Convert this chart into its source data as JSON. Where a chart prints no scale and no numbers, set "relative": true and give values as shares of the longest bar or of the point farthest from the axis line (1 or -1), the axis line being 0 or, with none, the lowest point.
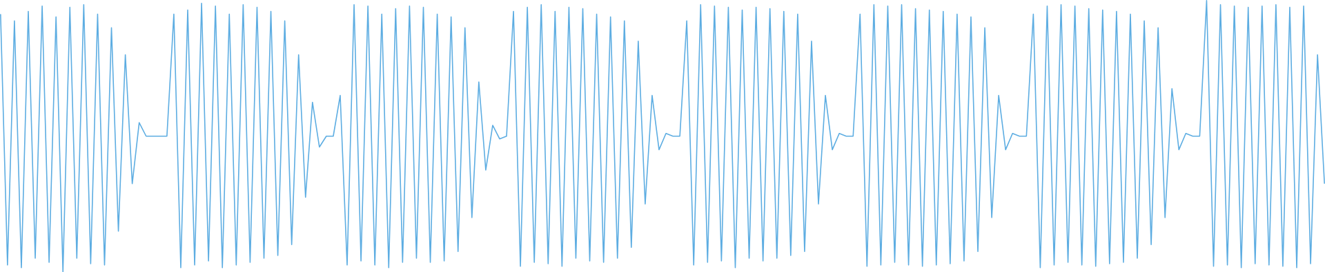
{
  "chart_data": {
    "type": "line",
    "relative": true,
    "color": "#5dade2",
    "categories": [
      null,
      null,
      null,
      null,
      null,
      null,
      null,
      null,
      null,
      null,
      null,
      null,
      null,
      null,
      null,
      null,
      null,
      null,
      null,
      null,
      null,
      null,
      null,
      null,
      null,
      null,
      null,
      null,
      null,
      null,
      null,
      null,
      null,
      null,
      null,
      null,
      null,
      null,
      null,
      null,
      null,
      null,
      null,
      null,
      null,
      null,
      null,
      null,
      null,
      null,
      null,
      null,
      null,
      null,
      null,
      null,
      null,
      null,
      null,
      null,
      null,
      null,
      null,
      null,
      null,
      null,
      null,
      null,
      null,
      null,
      null,
      null,
      null,
      null,
      null,
      null,
      null,
      null,
      null,
      null,
      null,
      null,
      null,
      null,
      null,
      null,
      null,
      null,
      null,
      null,
      null,
      null,
      null,
      null,
      null,
      null,
      null,
      null,
      null,
      null,
      null,
      null,
      null,
      null,
      null,
      null,
      null,
      null,
      null,
      null,
      null,
      null,
      null,
      null,
      null,
      null,
      null,
      null,
      null,
      null,
      null,
      null,
      null,
      null,
      null,
      null,
      null,
      null,
      null,
      null,
      null,
      null,
      null,
      null,
      null,
      null,
      null,
      null,
      null,
      null,
      null,
      null,
      null,
      null,
      null,
      null,
      null,
      null,
      null,
      null,
      null,
      null,
      null,
      null,
      null,
      null,
      null,
      null,
      null,
      null,
      null,
      null,
      null,
      null,
      null,
      null,
      null,
      null,
      null,
      null,
      null,
      null,
      null,
      null,
      null,
      null,
      null,
      null,
      null,
      null,
      null,
      null,
      null,
      null,
      null,
      null,
      null,
      null,
      null,
      null,
      null,
      null
    ],
    "values": [
      0.95,
      0.025,
      0.925,
      0.015,
      0.96,
      0.05,
      0.98,
      0.035,
      0.94,
      0,
      0.975,
      0.05,
      0.985,
      0.03,
      0.95,
      0.025,
      0.9,
      0.15,
      0.8,
      0.325,
      0.55,
      0.5,
      0.5,
      0.5,
      0.5,
      0.95,
      0.015,
      0.965,
      0.025,
      0.99,
      0.04,
      0.98,
      0.015,
      0.95,
      0.025,
      0.985,
      0.035,
      0.975,
      0.05,
      0.96,
      0.06,
      0.925,
      0.1,
      0.8,
      0.275,
      0.625,
      0.46,
      0.5,
      0.5,
      0.65,
      0.025,
      0.985,
      0.04,
      0.98,
      0.025,
      0.95,
      0.015,
      0.97,
      0.035,
      0.98,
      0.05,
      0.975,
      0.035,
      0.95,
      0.04,
      0.94,
      0.075,
      0.9,
      0.2,
      0.7,
      0.375,
      0.54,
      0.49,
      0.5,
      0.96,
      0.02,
      0.975,
      0.035,
      0.985,
      0.03,
      0.96,
      0.02,
      0.975,
      0.05,
      0.97,
      0.04,
      0.95,
      0.035,
      0.94,
      0.05,
      0.925,
      0.09,
      0.85,
      0.25,
      0.65,
      0.45,
      0.51,
      0.5,
      0.5,
      0.925,
      0.025,
      0.985,
      0.035,
      0.98,
      0.04,
      0.975,
      0.015,
      0.965,
      0.05,
      0.975,
      0.04,
      0.97,
      0.05,
      0.96,
      0.06,
      0.95,
      0.075,
      0.85,
      0.25,
      0.65,
      0.45,
      0.51,
      0.5,
      0.5,
      0.95,
      0.02,
      0.985,
      0.025,
      0.98,
      0.035,
      0.985,
      0.025,
      0.97,
      0.02,
      0.965,
      0.025,
      0.96,
      0.03,
      0.95,
      0.04,
      0.94,
      0.075,
      0.9,
      0.2,
      0.65,
      0.45,
      0.51,
      0.5,
      0.5,
      0.95,
      0.015,
      0.98,
      0.025,
      0.985,
      0.035,
      0.98,
      0.025,
      0.97,
      0.02,
      0.965,
      0.03,
      0.96,
      0.035,
      0.95,
      0.05,
      0.925,
      0.1,
      0.9,
      0.2,
      0.675,
      0.45,
      0.51,
      0.5,
      0.5,
      1,
      0.02,
      0.985,
      0.025,
      0.98,
      0.015,
      0.975,
      0.03,
      0.98,
      0.025,
      0.985,
      0.02,
      0.975,
      0.015,
      0.98,
      0.03,
      0.8,
      0.325
    ]
  }
}
